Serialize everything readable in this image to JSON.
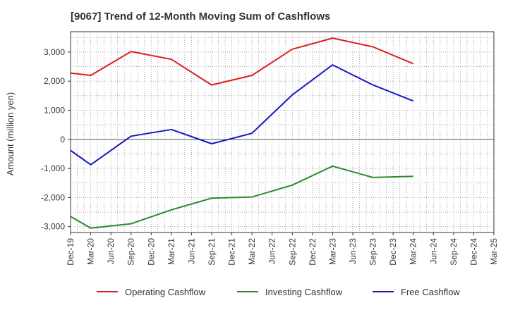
{
  "chart_data": {
    "type": "line",
    "title": "[9067]  Trend of 12-Month Moving Sum of Cashflows",
    "ylabel": "Amount (million yen)",
    "xlabel": "",
    "categories": [
      "Dec-19",
      "Mar-20",
      "Jun-20",
      "Sep-20",
      "Dec-20",
      "Mar-21",
      "Jun-21",
      "Sep-21",
      "Dec-21",
      "Mar-22",
      "Jun-22",
      "Sep-22",
      "Dec-22",
      "Mar-23",
      "Jun-23",
      "Sep-23",
      "Dec-23",
      "Mar-24",
      "Jun-24",
      "Sep-24",
      "Dec-24",
      "Mar-25"
    ],
    "yticks": [
      3000,
      2000,
      1000,
      0,
      -1000,
      -2000,
      -3000
    ],
    "ytick_labels": [
      "3,000",
      "2,000",
      "1,000",
      "0",
      "-1,000",
      "-2,000",
      "-3,000"
    ],
    "ylim": [
      -3200,
      3700
    ],
    "grid": true,
    "legend_position": "bottom",
    "series": [
      {
        "name": "Operating Cashflow",
        "color": "#dd1f1f",
        "values": [
          2280,
          2200,
          null,
          3020,
          null,
          2750,
          null,
          1870,
          null,
          2200,
          null,
          3100,
          null,
          3480,
          null,
          3180,
          null,
          2600,
          null,
          null,
          null,
          null
        ]
      },
      {
        "name": "Investing Cashflow",
        "color": "#2c8a2c",
        "values": [
          -2650,
          -3050,
          null,
          -2900,
          null,
          -2420,
          null,
          -2020,
          null,
          -1980,
          null,
          -1570,
          null,
          -920,
          null,
          -1310,
          null,
          -1270,
          null,
          null,
          null,
          null
        ]
      },
      {
        "name": "Free Cashflow",
        "color": "#1717c9",
        "values": [
          -380,
          -870,
          null,
          110,
          null,
          340,
          null,
          -150,
          null,
          210,
          null,
          1530,
          null,
          2560,
          null,
          1870,
          null,
          1320,
          null,
          null,
          null,
          null
        ]
      }
    ]
  }
}
